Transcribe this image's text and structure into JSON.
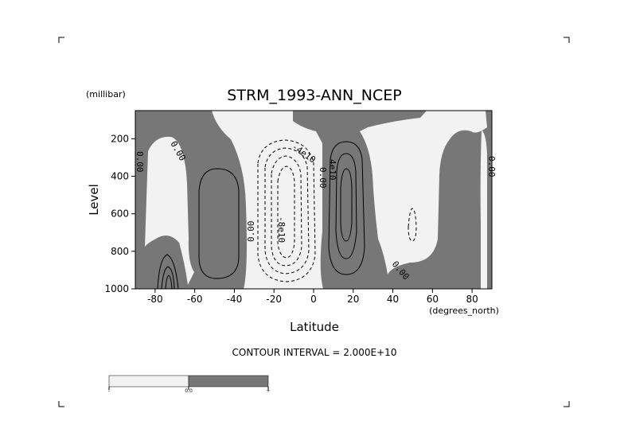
{
  "chart_data": {
    "type": "contour",
    "title": "STRM_1993-ANN_NCEP",
    "xlabel": "Latitude",
    "ylabel": "Level",
    "x_units": "(degrees_north)",
    "y_units": "(millibar)",
    "xlim": [
      -90,
      90
    ],
    "ylim": [
      1000,
      50
    ],
    "x_ticks": [
      "-80",
      "-60",
      "-40",
      "-20",
      "0",
      "20",
      "40",
      "60",
      "80"
    ],
    "y_ticks": [
      "200",
      "400",
      "600",
      "800",
      "1000"
    ],
    "contour_interval_text": "CONTOUR INTERVAL = 2.000E+10",
    "contour_labels": [
      "0.00",
      "0.00",
      "0.00",
      "4e10",
      "0.00",
      "-4e10",
      "-8e10",
      "0.00",
      "0.00"
    ],
    "fill_colors": {
      "negative": "#f2f2f2",
      "positive": "#777777"
    },
    "colorbar": {
      "labels": [
        "-",
        "0.0",
        "+"
      ],
      "colors": [
        "#f2f2f2",
        "#777777"
      ]
    }
  }
}
